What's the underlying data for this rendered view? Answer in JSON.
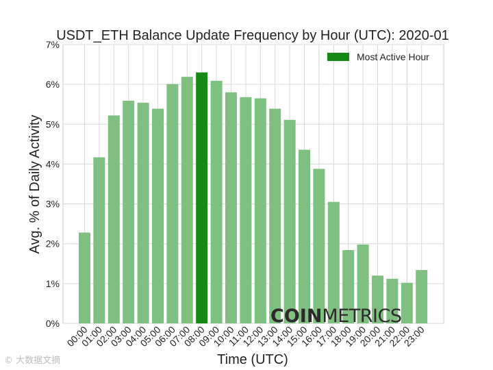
{
  "chart_data": {
    "type": "bar",
    "title": "USDT_ETH Balance Update Frequency by Hour (UTC): 2020-01",
    "xlabel": "Time (UTC)",
    "ylabel": "Avg. % of Daily Activity",
    "ylim": [
      0,
      7
    ],
    "y_ticks": [
      "0%",
      "1%",
      "2%",
      "3%",
      "4%",
      "5%",
      "6%",
      "7%"
    ],
    "categories": [
      "00:00",
      "01:00",
      "02:00",
      "03:00",
      "04:00",
      "05:00",
      "06:00",
      "07:00",
      "08:00",
      "09:00",
      "10:00",
      "11:00",
      "12:00",
      "13:00",
      "14:00",
      "15:00",
      "16:00",
      "17:00",
      "18:00",
      "19:00",
      "20:00",
      "21:00",
      "22:00",
      "23:00"
    ],
    "values": [
      2.28,
      4.17,
      5.22,
      5.59,
      5.54,
      5.39,
      6.01,
      6.19,
      6.3,
      6.09,
      5.8,
      5.68,
      5.65,
      5.39,
      5.11,
      4.36,
      3.88,
      3.05,
      1.84,
      1.98,
      1.2,
      1.12,
      1.02,
      1.34
    ],
    "highlight_index": 8,
    "bar_color": "#7fbf7f",
    "highlight_color": "#148a14",
    "grid": true,
    "legend": {
      "label": "Most Active Hour",
      "placement": "top-right"
    }
  },
  "watermark": {
    "brand_bold": "COIN",
    "brand_light": "METRICS",
    "corner_text": "© 大数据文摘"
  }
}
